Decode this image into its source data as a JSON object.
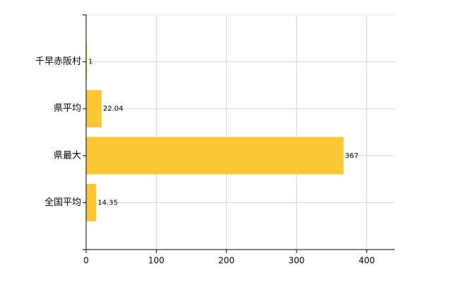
{
  "chart_data": {
    "type": "barh",
    "categories": [
      "千早赤阪村",
      "県平均",
      "県最大",
      "全国平均"
    ],
    "values": [
      1,
      22.04,
      367,
      14.35
    ],
    "color": "#fdc633",
    "xlim": [
      0,
      440
    ],
    "xticks": [
      0,
      100,
      200,
      300,
      400
    ],
    "grid": true
  }
}
